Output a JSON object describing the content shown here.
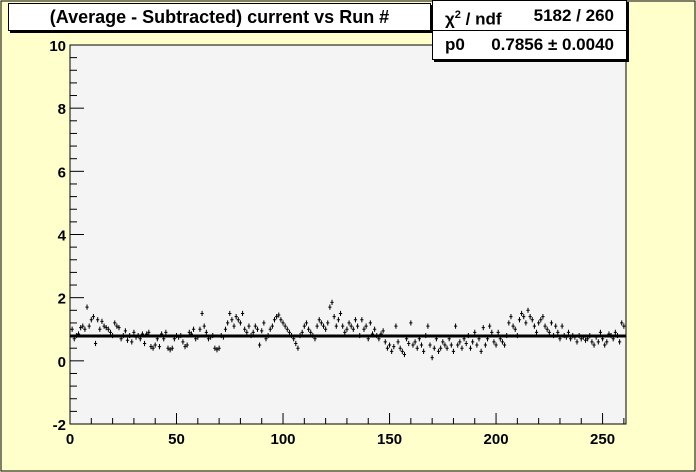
{
  "chart_data": {
    "type": "scatter",
    "title": "(Average - Subtracted) current vs Run #",
    "xlabel": "",
    "ylabel": "",
    "xlim": [
      0,
      261
    ],
    "ylim": [
      -2,
      10
    ],
    "x_ticks": [
      0,
      50,
      100,
      150,
      200,
      250
    ],
    "y_ticks": [
      -2,
      0,
      2,
      4,
      6,
      8,
      10
    ],
    "grid": false,
    "fit_line": {
      "p0": 0.7856
    },
    "stats": [
      {
        "key_html": "&chi;<sup style=\"font-size:11px\">2</sup> / ndf",
        "value": "5182 / 260"
      },
      {
        "key_html": "p0",
        "value": "0.7856 &plusmn; 0.0040"
      }
    ],
    "series": [
      {
        "values": [
          [
            1,
            1.0
          ],
          [
            2,
            0.7
          ],
          [
            3,
            0.8
          ],
          [
            4,
            0.85
          ],
          [
            5,
            1.05
          ],
          [
            6,
            1.1
          ],
          [
            7,
            1.0
          ],
          [
            8,
            1.7
          ],
          [
            9,
            1.1
          ],
          [
            10,
            1.3
          ],
          [
            11,
            1.4
          ],
          [
            12,
            0.55
          ],
          [
            13,
            1.3
          ],
          [
            14,
            1.0
          ],
          [
            15,
            1.25
          ],
          [
            16,
            1.1
          ],
          [
            17,
            1.05
          ],
          [
            18,
            1.0
          ],
          [
            19,
            0.9
          ],
          [
            20,
            0.8
          ],
          [
            21,
            1.2
          ],
          [
            22,
            1.1
          ],
          [
            23,
            1.05
          ],
          [
            24,
            0.7
          ],
          [
            25,
            0.8
          ],
          [
            26,
            0.95
          ],
          [
            27,
            0.65
          ],
          [
            28,
            0.8
          ],
          [
            29,
            0.6
          ],
          [
            30,
            0.9
          ],
          [
            31,
            0.75
          ],
          [
            32,
            0.8
          ],
          [
            33,
            0.7
          ],
          [
            34,
            0.85
          ],
          [
            35,
            0.55
          ],
          [
            36,
            0.85
          ],
          [
            37,
            0.9
          ],
          [
            38,
            0.45
          ],
          [
            39,
            0.4
          ],
          [
            40,
            0.5
          ],
          [
            41,
            0.7
          ],
          [
            42,
            0.45
          ],
          [
            43,
            0.85
          ],
          [
            44,
            0.7
          ],
          [
            45,
            0.9
          ],
          [
            46,
            0.4
          ],
          [
            47,
            0.35
          ],
          [
            48,
            0.4
          ],
          [
            49,
            0.7
          ],
          [
            50,
            0.8
          ],
          [
            51,
            0.75
          ],
          [
            52,
            0.8
          ],
          [
            53,
            0.6
          ],
          [
            54,
            0.45
          ],
          [
            55,
            0.5
          ],
          [
            56,
            0.9
          ],
          [
            57,
            0.85
          ],
          [
            58,
            1.0
          ],
          [
            59,
            0.7
          ],
          [
            60,
            0.75
          ],
          [
            61,
            1.0
          ],
          [
            62,
            1.5
          ],
          [
            63,
            1.1
          ],
          [
            64,
            0.9
          ],
          [
            65,
            0.7
          ],
          [
            66,
            0.75
          ],
          [
            67,
            0.8
          ],
          [
            68,
            0.4
          ],
          [
            69,
            0.35
          ],
          [
            70,
            0.4
          ],
          [
            71,
            0.8
          ],
          [
            72,
            0.75
          ],
          [
            73,
            1.0
          ],
          [
            74,
            1.2
          ],
          [
            75,
            1.5
          ],
          [
            76,
            1.3
          ],
          [
            77,
            1.1
          ],
          [
            78,
            1.4
          ],
          [
            79,
            1.3
          ],
          [
            80,
            1.2
          ],
          [
            81,
            1.5
          ],
          [
            82,
            1.0
          ],
          [
            83,
            0.9
          ],
          [
            84,
            1.1
          ],
          [
            85,
            0.8
          ],
          [
            86,
            0.9
          ],
          [
            87,
            1.1
          ],
          [
            88,
            1.0
          ],
          [
            89,
            0.5
          ],
          [
            90,
            0.95
          ],
          [
            91,
            1.2
          ],
          [
            92,
            0.7
          ],
          [
            93,
            0.8
          ],
          [
            94,
            1.0
          ],
          [
            95,
            1.1
          ],
          [
            96,
            1.3
          ],
          [
            97,
            1.4
          ],
          [
            98,
            1.45
          ],
          [
            99,
            1.3
          ],
          [
            100,
            1.2
          ],
          [
            101,
            1.1
          ],
          [
            102,
            1.0
          ],
          [
            103,
            0.9
          ],
          [
            104,
            0.8
          ],
          [
            105,
            0.7
          ],
          [
            106,
            0.55
          ],
          [
            107,
            0.4
          ],
          [
            108,
            0.8
          ],
          [
            109,
            0.9
          ],
          [
            110,
            1.1
          ],
          [
            111,
            1.2
          ],
          [
            112,
            1.0
          ],
          [
            113,
            0.9
          ],
          [
            114,
            0.8
          ],
          [
            115,
            0.7
          ],
          [
            116,
            1.1
          ],
          [
            117,
            1.3
          ],
          [
            118,
            1.2
          ],
          [
            119,
            1.1
          ],
          [
            120,
            1.0
          ],
          [
            121,
            1.2
          ],
          [
            122,
            1.7
          ],
          [
            123,
            1.85
          ],
          [
            124,
            1.4
          ],
          [
            125,
            1.1
          ],
          [
            126,
            1.3
          ],
          [
            127,
            1.5
          ],
          [
            128,
            1.1
          ],
          [
            129,
            0.9
          ],
          [
            130,
            1.0
          ],
          [
            131,
            1.2
          ],
          [
            132,
            1.1
          ],
          [
            133,
            1.0
          ],
          [
            134,
            1.3
          ],
          [
            135,
            1.1
          ],
          [
            136,
            0.8
          ],
          [
            137,
            1.3
          ],
          [
            138,
            1.0
          ],
          [
            139,
            1.1
          ],
          [
            140,
            0.7
          ],
          [
            141,
            1.2
          ],
          [
            142,
            0.85
          ],
          [
            143,
            1.0
          ],
          [
            144,
            0.8
          ],
          [
            145,
            0.7
          ],
          [
            146,
            0.85
          ],
          [
            147,
            0.95
          ],
          [
            148,
            0.6
          ],
          [
            149,
            0.4
          ],
          [
            150,
            0.5
          ],
          [
            151,
            0.3
          ],
          [
            152,
            0.45
          ],
          [
            153,
            1.1
          ],
          [
            154,
            0.6
          ],
          [
            155,
            0.4
          ],
          [
            156,
            0.3
          ],
          [
            157,
            0.2
          ],
          [
            158,
            0.7
          ],
          [
            159,
            0.55
          ],
          [
            160,
            1.2
          ],
          [
            161,
            0.5
          ],
          [
            162,
            0.6
          ],
          [
            163,
            0.4
          ],
          [
            164,
            0.7
          ],
          [
            165,
            0.5
          ],
          [
            166,
            0.3
          ],
          [
            167,
            0.8
          ],
          [
            168,
            1.1
          ],
          [
            169,
            0.5
          ],
          [
            170,
            0.1
          ],
          [
            171,
            0.4
          ],
          [
            172,
            0.7
          ],
          [
            173,
            0.3
          ],
          [
            174,
            0.4
          ],
          [
            175,
            0.6
          ],
          [
            176,
            0.5
          ],
          [
            177,
            0.4
          ],
          [
            178,
            0.7
          ],
          [
            179,
            0.5
          ],
          [
            180,
            0.3
          ],
          [
            181,
            1.1
          ],
          [
            182,
            0.5
          ],
          [
            183,
            0.6
          ],
          [
            184,
            0.4
          ],
          [
            185,
            0.7
          ],
          [
            186,
            0.55
          ],
          [
            187,
            0.8
          ],
          [
            188,
            0.4
          ],
          [
            189,
            0.6
          ],
          [
            190,
            0.9
          ],
          [
            191,
            0.5
          ],
          [
            192,
            0.7
          ],
          [
            193,
            0.3
          ],
          [
            194,
            1.05
          ],
          [
            195,
            0.5
          ],
          [
            196,
            0.7
          ],
          [
            197,
            1.1
          ],
          [
            198,
            0.9
          ],
          [
            199,
            0.6
          ],
          [
            200,
            0.5
          ],
          [
            201,
            0.9
          ],
          [
            202,
            0.7
          ],
          [
            203,
            0.6
          ],
          [
            204,
            0.5
          ],
          [
            205,
            0.8
          ],
          [
            206,
            1.2
          ],
          [
            207,
            1.4
          ],
          [
            208,
            1.1
          ],
          [
            209,
            1.0
          ],
          [
            210,
            0.8
          ],
          [
            211,
            1.3
          ],
          [
            212,
            1.5
          ],
          [
            213,
            1.4
          ],
          [
            214,
            1.2
          ],
          [
            215,
            1.6
          ],
          [
            216,
            1.4
          ],
          [
            217,
            1.3
          ],
          [
            218,
            1.1
          ],
          [
            219,
            0.9
          ],
          [
            220,
            1.2
          ],
          [
            221,
            1.3
          ],
          [
            222,
            1.4
          ],
          [
            223,
            1.1
          ],
          [
            224,
            1.0
          ],
          [
            225,
            0.9
          ],
          [
            226,
            1.2
          ],
          [
            227,
            0.8
          ],
          [
            228,
            1.1
          ],
          [
            229,
            0.9
          ],
          [
            230,
            0.7
          ],
          [
            231,
            1.1
          ],
          [
            232,
            0.8
          ],
          [
            233,
            0.75
          ],
          [
            234,
            0.9
          ],
          [
            235,
            0.7
          ],
          [
            236,
            0.8
          ],
          [
            237,
            0.75
          ],
          [
            238,
            0.6
          ],
          [
            239,
            0.8
          ],
          [
            240,
            0.7
          ],
          [
            241,
            0.75
          ],
          [
            242,
            0.65
          ],
          [
            243,
            0.7
          ],
          [
            244,
            0.8
          ],
          [
            245,
            0.6
          ],
          [
            246,
            0.5
          ],
          [
            247,
            0.75
          ],
          [
            248,
            0.6
          ],
          [
            249,
            0.9
          ],
          [
            250,
            0.7
          ],
          [
            251,
            0.5
          ],
          [
            252,
            0.6
          ],
          [
            253,
            0.85
          ],
          [
            254,
            0.8
          ],
          [
            255,
            0.7
          ],
          [
            256,
            0.9
          ],
          [
            257,
            0.8
          ],
          [
            258,
            0.6
          ],
          [
            259,
            1.2
          ],
          [
            260,
            1.1
          ]
        ]
      }
    ]
  }
}
